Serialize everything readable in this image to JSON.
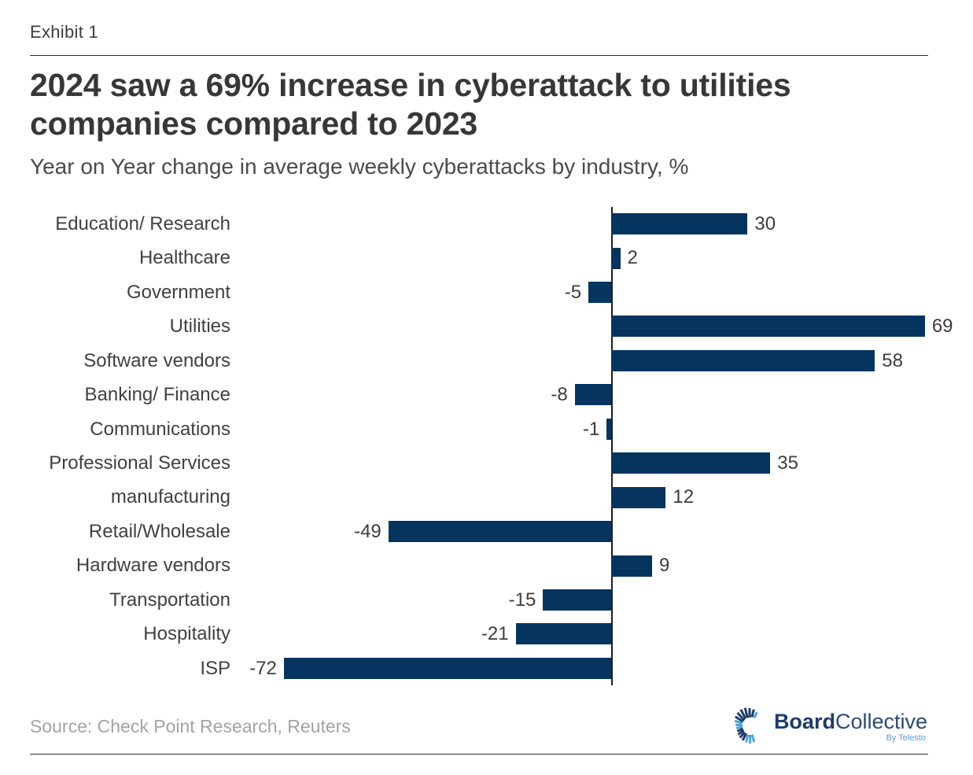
{
  "exhibit": {
    "label": "Exhibit 1"
  },
  "header": {
    "title_lines": [
      "2024 saw a 69% increase in cyberattack to utilities",
      "companies compared to 2023"
    ],
    "subtitle": "Year on Year change in average weekly cyberattacks by industry, %"
  },
  "footer": {
    "source": "Source: Check Point Research, Reuters"
  },
  "logo": {
    "brand_bold": "Board",
    "brand_light": "Collective",
    "tagline": "By Telesto",
    "icon": "burst-spiral-icon"
  },
  "colors": {
    "bar": "#05345f",
    "axis": "#1f1f1f",
    "title_text": "#373737",
    "label_text": "#414141",
    "source_text": "#a3a3a3",
    "logo_navy": "#1d3c6a",
    "logo_blue": "#4ba3dc"
  },
  "chart_data": {
    "type": "bar",
    "orientation": "horizontal",
    "title": "2024 saw a 69% increase in cyberattack to utilities companies compared to 2023",
    "subtitle": "Year on Year change in average weekly cyberattacks by industry, %",
    "unit": "%",
    "categories": [
      "Education/ Research",
      "Healthcare",
      "Government",
      "Utilities",
      "Software vendors",
      "Banking/ Finance",
      "Communications",
      "Professional Services",
      "manufacturing",
      "Retail/Wholesale",
      "Hardware vendors",
      "Transportation",
      "Hospitality",
      "ISP"
    ],
    "values": [
      30,
      2,
      -5,
      69,
      58,
      -8,
      -1,
      35,
      12,
      -49,
      9,
      -15,
      -21,
      -72
    ],
    "xlim": [
      -80,
      80
    ],
    "grid": false,
    "legend": "none",
    "value_labels": "outside-end"
  }
}
